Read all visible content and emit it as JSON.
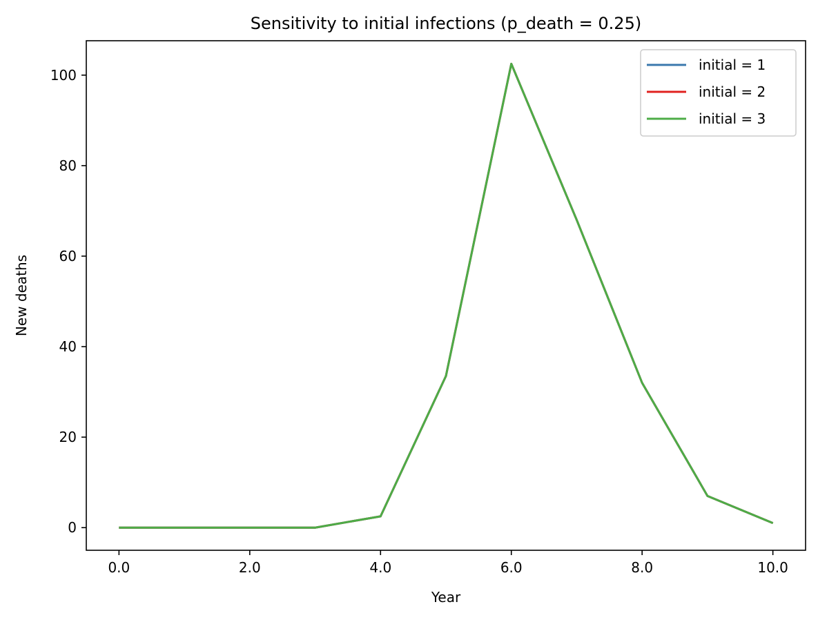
{
  "chart_data": {
    "type": "line",
    "title": "Sensitivity to initial infections (p_death = 0.25)",
    "xlabel": "Year",
    "ylabel": "New deaths",
    "xlim": [
      -0.5,
      10.5
    ],
    "ylim": [
      -5,
      107.6
    ],
    "xticks": [
      0,
      2,
      4,
      6,
      8,
      10
    ],
    "xtick_labels": [
      "0.0",
      "2.0",
      "4.0",
      "6.0",
      "8.0",
      "10.0"
    ],
    "yticks": [
      0,
      20,
      40,
      60,
      80,
      100
    ],
    "ytick_labels": [
      "0",
      "20",
      "40",
      "60",
      "80",
      "100"
    ],
    "grid": false,
    "legend_position": "top-right",
    "x": [
      0,
      1,
      2,
      3,
      4,
      5,
      6,
      7,
      8,
      9,
      10
    ],
    "series": [
      {
        "name": "initial = 1",
        "color": "#3a78ad",
        "values": [
          0,
          0,
          0,
          0,
          2.5,
          33.5,
          102.5,
          68,
          32,
          7,
          1
        ]
      },
      {
        "name": "initial = 2",
        "color": "#e0211f",
        "values": [
          0,
          0,
          0,
          0,
          2.5,
          33.5,
          102.5,
          68,
          32,
          7,
          1
        ]
      },
      {
        "name": "initial = 3",
        "color": "#4dac47",
        "values": [
          0,
          0,
          0,
          0,
          2.5,
          33.5,
          102.5,
          68,
          32,
          7,
          1
        ]
      }
    ]
  }
}
